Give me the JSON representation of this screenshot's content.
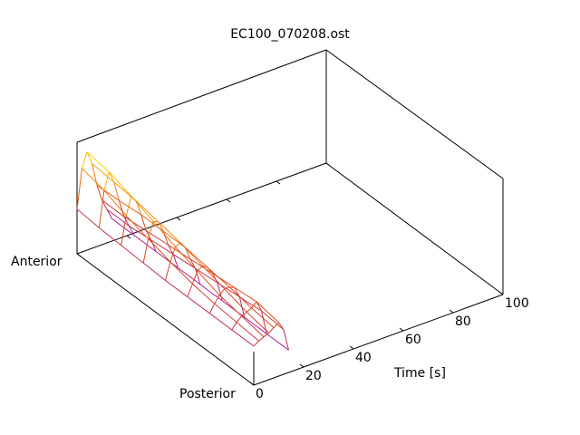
{
  "chart_data": {
    "type": "surface",
    "title": "EC100_070208.ost",
    "x_label": "Time [s]",
    "y_labels": [
      "Posterior",
      "Anterior"
    ],
    "x": [
      0,
      2,
      4,
      6,
      8,
      10,
      12,
      14
    ],
    "z": [
      [
        0.35,
        0.38,
        0.4,
        0.42,
        0.45,
        0.48,
        0.4,
        0.2
      ],
      [
        0.35,
        0.4,
        0.44,
        0.46,
        0.48,
        0.52,
        0.42,
        0.2
      ],
      [
        0.35,
        0.42,
        0.48,
        0.52,
        0.52,
        0.5,
        0.4,
        0.2
      ],
      [
        0.35,
        0.45,
        0.55,
        0.58,
        0.55,
        0.48,
        0.38,
        0.2
      ],
      [
        0.35,
        0.5,
        0.62,
        0.64,
        0.58,
        0.46,
        0.36,
        0.2
      ],
      [
        0.36,
        0.56,
        0.7,
        0.68,
        0.58,
        0.44,
        0.34,
        0.2
      ],
      [
        0.37,
        0.62,
        0.78,
        0.72,
        0.58,
        0.42,
        0.32,
        0.2
      ],
      [
        0.38,
        0.7,
        0.85,
        0.74,
        0.56,
        0.4,
        0.3,
        0.2
      ],
      [
        0.4,
        0.75,
        0.88,
        0.76,
        0.55,
        0.4,
        0.3,
        0.2
      ]
    ],
    "xlim": [
      0,
      100
    ],
    "xticks": [
      0,
      20,
      40,
      60,
      80,
      100
    ],
    "zlim": [
      0,
      1
    ],
    "colormap": [
      "#8000e0",
      "#e04818",
      "#ffff00"
    ]
  }
}
